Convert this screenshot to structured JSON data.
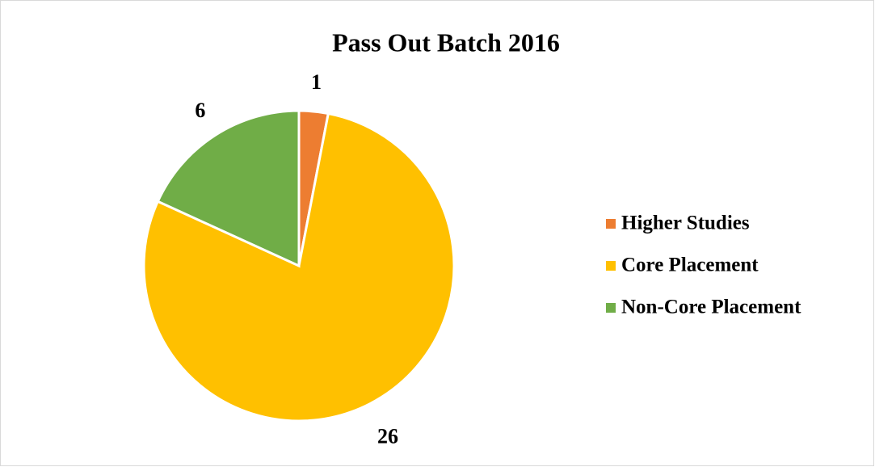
{
  "chart_data": {
    "type": "pie",
    "title": "Pass Out Batch 2016",
    "categories": [
      "Higher Studies",
      "Core Placement",
      "Non-Core Placement"
    ],
    "values": [
      1,
      26,
      6
    ],
    "colors": [
      "#ED7D31",
      "#FFC000",
      "#70AD47"
    ],
    "legend": "right"
  }
}
